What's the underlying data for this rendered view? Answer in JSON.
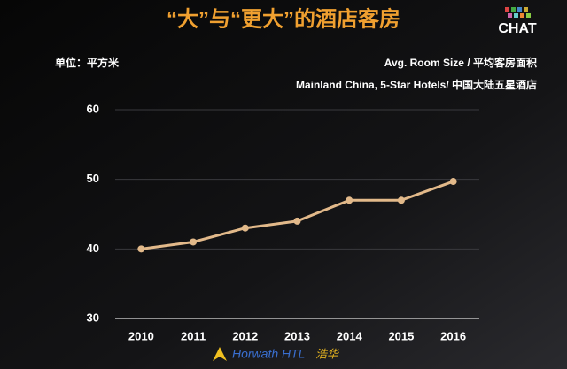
{
  "chart_data": {
    "type": "line",
    "title": "“大”与“更大”的酒店客房",
    "ylabel": "单位：平方米",
    "subtitle": "Mainland China, 5-Star Hotels/ 中国大陆五星酒店",
    "categories": [
      "2010",
      "2011",
      "2012",
      "2013",
      "2014",
      "2015",
      "2016"
    ],
    "series": [
      {
        "name": "Avg. Room Size / 平均客房面积",
        "color": "#e2b98a",
        "values": [
          40,
          41,
          43,
          44,
          47,
          47,
          49.7
        ]
      }
    ],
    "ylim": [
      30,
      60
    ],
    "yticks": [
      30,
      40,
      50,
      60
    ],
    "grid": true
  },
  "logo": "CHAT",
  "footer": {
    "brand": "Horwath HTL",
    "brand_cn": "浩华"
  }
}
